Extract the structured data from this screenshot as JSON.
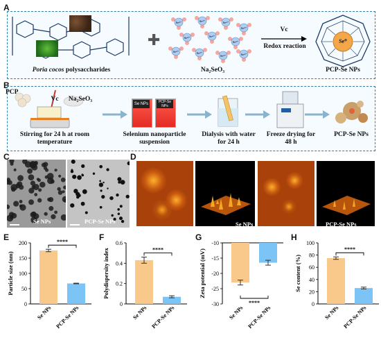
{
  "panelA": {
    "letter": "A",
    "polysaccharide_label_italic": "Poria cocos",
    "polysaccharide_label_rest": " polysaccharides",
    "salt_label": "Na₂SeO₃",
    "reagent": "Vc",
    "reaction": "Redox reaction",
    "product": "PCP-Se NPs",
    "ion_label": "Se⁴⁺",
    "core_label": "Se⁰"
  },
  "panelB": {
    "letter": "B",
    "pcp_label": "PCP",
    "vc_label": "Vc",
    "salt_label": "Na₂SeO₃",
    "vial1": "Se NPs",
    "vial2": "PCP-Se NPs",
    "steps": [
      "Stirring for 24 h at room temperature",
      "Selenium nanoparticle suspension",
      "Dialysis with water for 24 h",
      "Freeze drying for 48 h",
      "PCP-Se NPs"
    ]
  },
  "panelC": {
    "letter": "C",
    "img1": "Se NPs",
    "img2": "PCP-Se NPs"
  },
  "panelD": {
    "letter": "D",
    "img1": "Se NPs",
    "img2": "PCP-Se NPs"
  },
  "chart_data": [
    {
      "panel": "E",
      "type": "bar",
      "categories": [
        "Se NPs",
        "PCP-Se NPs"
      ],
      "values": [
        175,
        67
      ],
      "errors": [
        4,
        1
      ],
      "ylabel": "Particle size (nm)",
      "ylim": [
        0,
        200
      ],
      "yticks": [
        0,
        50,
        100,
        150,
        200
      ],
      "significance": "****",
      "colors": [
        "#f8c98a",
        "#7cc4f5"
      ]
    },
    {
      "panel": "F",
      "type": "bar",
      "categories": [
        "Se NPs",
        "PCP-Se NPs"
      ],
      "values": [
        0.43,
        0.07
      ],
      "errors": [
        0.03,
        0.01
      ],
      "ylabel": "Polydispersity index",
      "ylim": [
        0,
        0.6
      ],
      "yticks": [
        0,
        0.2,
        0.4,
        0.6
      ],
      "significance": "****",
      "colors": [
        "#f8c98a",
        "#7cc4f5"
      ]
    },
    {
      "panel": "G",
      "type": "bar",
      "categories": [
        "Se NPs",
        "PCP-Se NPs"
      ],
      "values": [
        -23,
        -16.5
      ],
      "errors": [
        0.8,
        0.8
      ],
      "ylabel": "Zeta potential (mV)",
      "ylim": [
        -30,
        -10
      ],
      "yticks": [
        -10,
        -15,
        -20,
        -25,
        -30
      ],
      "significance": "****",
      "colors": [
        "#f8c98a",
        "#7cc4f5"
      ]
    },
    {
      "panel": "H",
      "type": "bar",
      "categories": [
        "Se NPs",
        "PCP-Se NPs"
      ],
      "values": [
        75,
        26
      ],
      "errors": [
        2,
        1.5
      ],
      "ylabel": "Se content (%)",
      "ylim": [
        0,
        100
      ],
      "yticks": [
        0,
        20,
        40,
        60,
        80,
        100
      ],
      "significance": "****",
      "colors": [
        "#f8c98a",
        "#7cc4f5"
      ]
    }
  ]
}
